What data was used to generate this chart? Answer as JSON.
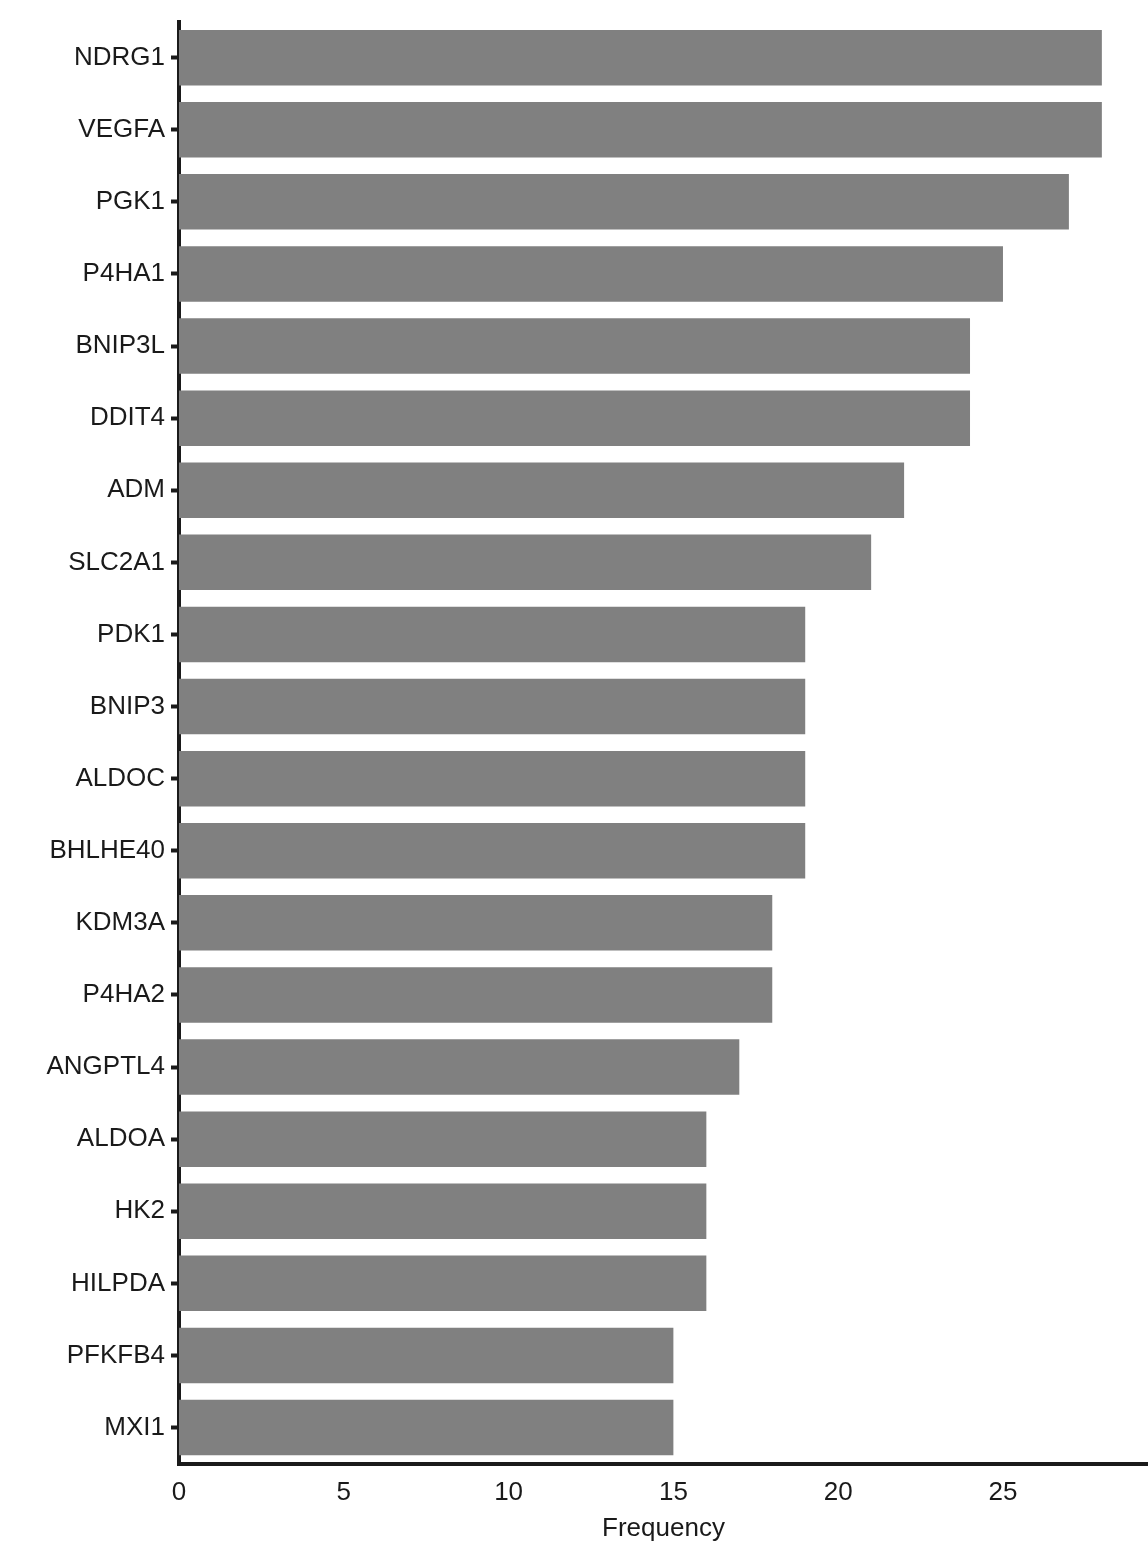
{
  "chart_data": {
    "type": "bar",
    "orientation": "horizontal",
    "xlabel": "Frequency",
    "categories": [
      "NDRG1",
      "VEGFA",
      "PGK1",
      "P4HA1",
      "BNIP3L",
      "DDIT4",
      "ADM",
      "SLC2A1",
      "PDK1",
      "BNIP3",
      "ALDOC",
      "BHLHE40",
      "KDM3A",
      "P4HA2",
      "ANGPTL4",
      "ALDOA",
      "HK2",
      "HILPDA",
      "PFKFB4",
      "MXI1"
    ],
    "values": [
      28,
      28,
      27,
      25,
      24,
      24,
      22,
      21,
      19,
      19,
      19,
      19,
      18,
      18,
      17,
      16,
      16,
      16,
      15,
      15
    ],
    "color": "#808080",
    "xlim": [
      0,
      29.4
    ],
    "xticks": [
      0,
      5,
      10,
      15,
      20,
      25
    ],
    "grid": false,
    "legend": false
  }
}
